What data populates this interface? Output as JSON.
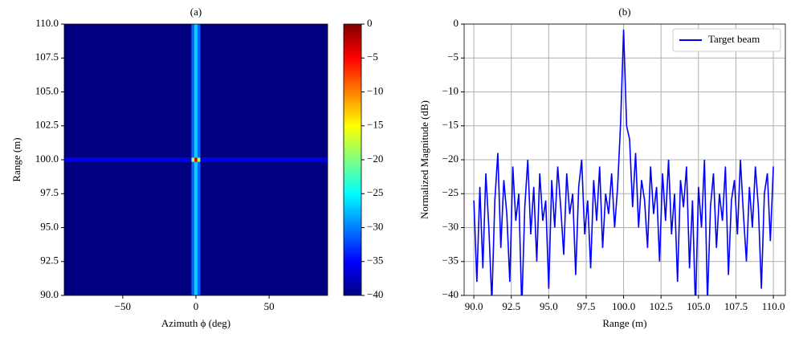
{
  "chart_data": [
    {
      "type": "heatmap",
      "title": "(a)",
      "x_label": "Azimuth ϕ (deg)",
      "y_label": "Range (m)",
      "xlim": [
        -90,
        90
      ],
      "ylim": [
        90,
        110
      ],
      "xticks": [
        {
          "value": -50,
          "label": "−50"
        },
        0,
        50
      ],
      "yticks": [
        {
          "value": 90,
          "label": "90.0"
        },
        {
          "value": 92.5,
          "label": "92.5"
        },
        {
          "value": 95,
          "label": "95.0"
        },
        {
          "value": 97.5,
          "label": "97.5"
        },
        {
          "value": 100,
          "label": "100.0"
        },
        {
          "value": 102.5,
          "label": "102.5"
        },
        {
          "value": 105,
          "label": "105.0"
        },
        {
          "value": 107.5,
          "label": "107.5"
        },
        {
          "value": 110,
          "label": "110.0"
        }
      ],
      "x_edges": [
        -90,
        -3,
        -1,
        1,
        3,
        90
      ],
      "y_edges": [
        90,
        99.85,
        100.15,
        110
      ],
      "z": [
        [
          -40,
          -31,
          -27,
          -31,
          -40
        ],
        [
          -36,
          -18,
          -3,
          -18,
          -36
        ],
        [
          -40,
          -31,
          -27,
          -31,
          -40
        ]
      ],
      "colormap": "jet",
      "clim": [
        -40,
        0
      ],
      "colorbar_ticks": [
        {
          "value": 0,
          "label": "0"
        },
        {
          "value": -5,
          "label": "−5"
        },
        {
          "value": -10,
          "label": "−10"
        },
        {
          "value": -15,
          "label": "−15"
        },
        {
          "value": -20,
          "label": "−20"
        },
        {
          "value": -25,
          "label": "−25"
        },
        {
          "value": -30,
          "label": "−30"
        },
        {
          "value": -35,
          "label": "−35"
        },
        {
          "value": -40,
          "label": "−40"
        }
      ]
    },
    {
      "type": "line",
      "title": "(b)",
      "x_label": "Range (m)",
      "y_label": "Normalized Magnitude (dB)",
      "xlim": [
        89.35,
        110.8
      ],
      "ylim": [
        -40,
        0
      ],
      "grid": true,
      "legend": "upper right",
      "xticks": [
        {
          "value": 90,
          "label": "90.0"
        },
        {
          "value": 92.5,
          "label": "92.5"
        },
        {
          "value": 95,
          "label": "95.0"
        },
        {
          "value": 97.5,
          "label": "97.5"
        },
        {
          "value": 100,
          "label": "100.0"
        },
        {
          "value": 102.5,
          "label": "102.5"
        },
        {
          "value": 105,
          "label": "105.0"
        },
        {
          "value": 107.5,
          "label": "107.5"
        },
        {
          "value": 110,
          "label": "110.0"
        }
      ],
      "yticks": [
        {
          "value": 0,
          "label": "0"
        },
        {
          "value": -5,
          "label": "−5"
        },
        {
          "value": -10,
          "label": "−10"
        },
        {
          "value": -15,
          "label": "−15"
        },
        {
          "value": -20,
          "label": "−20"
        },
        {
          "value": -25,
          "label": "−25"
        },
        {
          "value": -30,
          "label": "−30"
        },
        {
          "value": -35,
          "label": "−35"
        },
        {
          "value": -40,
          "label": "−40"
        }
      ],
      "x": [
        90,
        90.2,
        90.4,
        90.6,
        90.8,
        91,
        91.2,
        91.4,
        91.6,
        91.8,
        92,
        92.2,
        92.4,
        92.6,
        92.8,
        93,
        93.2,
        93.4,
        93.6,
        93.8,
        94,
        94.2,
        94.4,
        94.6,
        94.8,
        95,
        95.2,
        95.4,
        95.6,
        95.8,
        96,
        96.2,
        96.4,
        96.6,
        96.8,
        97,
        97.2,
        97.4,
        97.6,
        97.8,
        98,
        98.2,
        98.4,
        98.6,
        98.8,
        99,
        99.2,
        99.4,
        99.6,
        99.8,
        100,
        100.2,
        100.4,
        100.6,
        100.8,
        101,
        101.2,
        101.4,
        101.6,
        101.8,
        102,
        102.2,
        102.4,
        102.6,
        102.8,
        103,
        103.2,
        103.4,
        103.6,
        103.8,
        104,
        104.2,
        104.4,
        104.6,
        104.8,
        105,
        105.2,
        105.4,
        105.6,
        105.8,
        106,
        106.2,
        106.4,
        106.6,
        106.8,
        107,
        107.2,
        107.4,
        107.6,
        107.8,
        108,
        108.2,
        108.4,
        108.6,
        108.8,
        109,
        109.2,
        109.4,
        109.6,
        109.8,
        110
      ],
      "series": [
        {
          "name": "Target beam",
          "color": "#0000ff",
          "values": [
            -26,
            -38,
            -24,
            -36,
            -22,
            -30,
            -41,
            -26,
            -19,
            -33,
            -23,
            -28,
            -38,
            -21,
            -29,
            -25,
            -42,
            -27,
            -20,
            -31,
            -24,
            -35,
            -22,
            -29,
            -26,
            -39,
            -23,
            -30,
            -21,
            -27,
            -34,
            -22,
            -28,
            -25,
            -37,
            -24,
            -20,
            -31,
            -26,
            -36,
            -23,
            -29,
            -21,
            -33,
            -25,
            -28,
            -22,
            -30,
            -24,
            -14.5,
            -0.8,
            -15,
            -17,
            -27,
            -19,
            -30,
            -23,
            -26,
            -33,
            -21,
            -28,
            -24,
            -35,
            -22,
            -29,
            -20,
            -31,
            -25,
            -38,
            -23,
            -27,
            -21,
            -36,
            -26,
            -42,
            -24,
            -30,
            -20,
            -41,
            -27,
            -22,
            -33,
            -25,
            -29,
            -21,
            -37,
            -26,
            -23,
            -31,
            -20,
            -28,
            -35,
            -24,
            -30,
            -21,
            -27,
            -39,
            -25,
            -22,
            -32,
            -21
          ]
        }
      ]
    }
  ]
}
